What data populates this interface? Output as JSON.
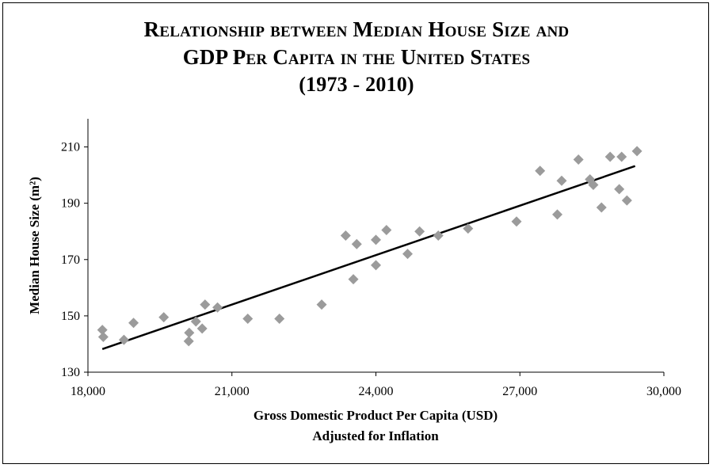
{
  "chart_data": {
    "type": "scatter",
    "title_lines": [
      "Relationship between Median House Size and",
      "GDP Per Capita in the United States",
      "(1973 - 2010)"
    ],
    "xlabel_lines": [
      "Gross Domestic Product Per Capita (USD)",
      "Adjusted for Inflation"
    ],
    "ylabel": "Median House Size (m²)",
    "xlim": [
      18000,
      30000
    ],
    "ylim": [
      130,
      220
    ],
    "x_ticks": [
      18000,
      21000,
      24000,
      27000,
      30000
    ],
    "x_tick_labels": [
      "18,000",
      "21,000",
      "24,000",
      "27,000",
      "30,000"
    ],
    "y_ticks": [
      130,
      150,
      170,
      190,
      210
    ],
    "y_tick_labels": [
      "130",
      "150",
      "170",
      "190",
      "210"
    ],
    "grid": false,
    "series": [
      {
        "points": [
          [
            18300,
            145.0
          ],
          [
            18320,
            142.5
          ],
          [
            18750,
            141.5
          ],
          [
            18950,
            147.5
          ],
          [
            19580,
            149.5
          ],
          [
            20100,
            141.0
          ],
          [
            20110,
            144.0
          ],
          [
            20250,
            148.0
          ],
          [
            20380,
            145.5
          ],
          [
            20440,
            154.0
          ],
          [
            20700,
            153.0
          ],
          [
            21330,
            149.0
          ],
          [
            21990,
            149.0
          ],
          [
            22870,
            154.0
          ],
          [
            23370,
            178.5
          ],
          [
            23530,
            163.0
          ],
          [
            23600,
            175.5
          ],
          [
            24000,
            177.0
          ],
          [
            24000,
            168.0
          ],
          [
            24220,
            180.5
          ],
          [
            24660,
            172.0
          ],
          [
            24910,
            180.0
          ],
          [
            25300,
            178.5
          ],
          [
            25920,
            181.0
          ],
          [
            26930,
            183.5
          ],
          [
            27420,
            201.5
          ],
          [
            27780,
            186.0
          ],
          [
            27870,
            198.0
          ],
          [
            28220,
            205.5
          ],
          [
            28460,
            198.5
          ],
          [
            28530,
            196.5
          ],
          [
            28700,
            188.5
          ],
          [
            28880,
            206.5
          ],
          [
            29070,
            195.0
          ],
          [
            29120,
            206.5
          ],
          [
            29230,
            191.0
          ],
          [
            29440,
            208.5
          ]
        ],
        "color": "#9b9b9b"
      }
    ],
    "trendline": {
      "x": [
        18300,
        29400
      ],
      "y": [
        138.2,
        203.2
      ],
      "color": "#000000"
    }
  }
}
